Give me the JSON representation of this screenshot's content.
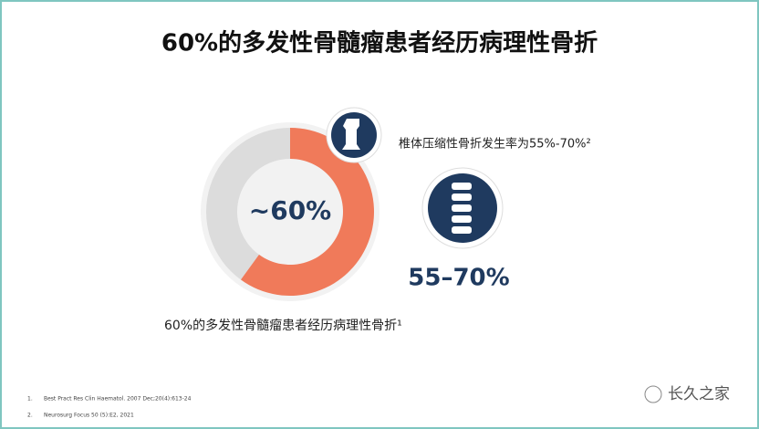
{
  "chart_data": {
    "type": "donut",
    "title": "60%的多发性骨髓瘤患者经历病理性骨折",
    "values": [
      60,
      40
    ],
    "colors": [
      "#f07a5a",
      "#dcdcdc"
    ],
    "center_label": "~60%",
    "caption": "60%的多发性骨髓瘤患者经历病理性骨折¹",
    "annotations": [
      "椎体压缩性骨折发生率为55%-70%²",
      "55–70%"
    ]
  },
  "footnotes": [
    "1.",
    "Best Pract Res Clin Haematol. 2007 Dec;20(4):613-24",
    "2.",
    "Neurosurg Focus 50 (5):E2, 2021"
  ],
  "watermark": "长久之家"
}
